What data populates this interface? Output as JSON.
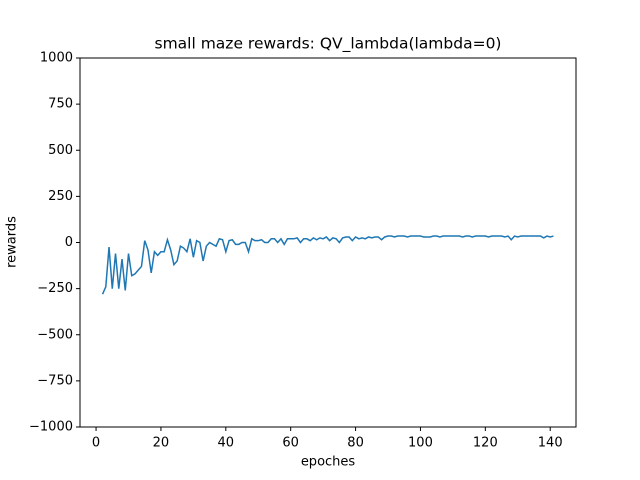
{
  "chart_data": {
    "type": "line",
    "title": "small maze rewards: QV_lambda(lambda=0)",
    "x_label": "epoches",
    "y_label": "rewards",
    "x": [
      2,
      3,
      4,
      5,
      6,
      7,
      8,
      9,
      10,
      11,
      12,
      13,
      14,
      15,
      16,
      17,
      18,
      19,
      20,
      21,
      22,
      23,
      24,
      25,
      26,
      27,
      28,
      29,
      30,
      31,
      32,
      33,
      34,
      35,
      36,
      37,
      38,
      39,
      40,
      41,
      42,
      43,
      44,
      45,
      46,
      47,
      48,
      49,
      50,
      51,
      52,
      53,
      54,
      55,
      56,
      57,
      58,
      59,
      60,
      61,
      62,
      63,
      64,
      65,
      66,
      67,
      68,
      69,
      70,
      71,
      72,
      73,
      74,
      75,
      76,
      77,
      78,
      79,
      80,
      81,
      82,
      83,
      84,
      85,
      86,
      87,
      88,
      89,
      90,
      91,
      92,
      93,
      94,
      95,
      96,
      97,
      98,
      99,
      100,
      101,
      102,
      103,
      104,
      105,
      106,
      107,
      108,
      109,
      110,
      111,
      112,
      113,
      114,
      115,
      116,
      117,
      118,
      119,
      120,
      121,
      122,
      123,
      124,
      125,
      126,
      127,
      128,
      129,
      130,
      131,
      132,
      133,
      134,
      135,
      136,
      137,
      138,
      139,
      140,
      141
    ],
    "series": [
      {
        "name": "rewards",
        "color": "#1f77b4",
        "values": [
          -280,
          -240,
          -25,
          -250,
          -60,
          -250,
          -90,
          -260,
          -60,
          -180,
          -170,
          -150,
          -130,
          10,
          -40,
          -165,
          -50,
          -70,
          -50,
          -50,
          15,
          -40,
          -120,
          -100,
          -20,
          -30,
          -50,
          20,
          -80,
          10,
          0,
          -100,
          -20,
          0,
          -10,
          -20,
          20,
          15,
          -50,
          10,
          15,
          -10,
          -10,
          0,
          0,
          -50,
          20,
          10,
          10,
          15,
          0,
          0,
          20,
          20,
          0,
          20,
          -10,
          20,
          20,
          20,
          25,
          0,
          20,
          20,
          10,
          25,
          15,
          25,
          20,
          30,
          10,
          25,
          20,
          0,
          25,
          30,
          30,
          10,
          30,
          20,
          25,
          20,
          30,
          25,
          30,
          30,
          15,
          30,
          35,
          35,
          30,
          35,
          35,
          35,
          30,
          35,
          35,
          35,
          35,
          30,
          30,
          30,
          35,
          35,
          30,
          35,
          35,
          35,
          35,
          35,
          35,
          30,
          35,
          35,
          30,
          35,
          35,
          35,
          35,
          30,
          35,
          35,
          35,
          35,
          30,
          35,
          15,
          35,
          30,
          35,
          35,
          35,
          35,
          35,
          35,
          35,
          25,
          35,
          30,
          35
        ]
      }
    ],
    "xlim": [
      -4.95,
      147.95
    ],
    "ylim": [
      -1000,
      1000
    ],
    "xticks": [
      0,
      20,
      40,
      60,
      80,
      100,
      120,
      140
    ],
    "yticks": [
      {
        "value": -1000,
        "label": "−1000"
      },
      {
        "value": -750,
        "label": "−750"
      },
      {
        "value": -500,
        "label": "−500"
      },
      {
        "value": -250,
        "label": "−250"
      },
      0,
      250,
      500,
      750,
      1000
    ]
  }
}
